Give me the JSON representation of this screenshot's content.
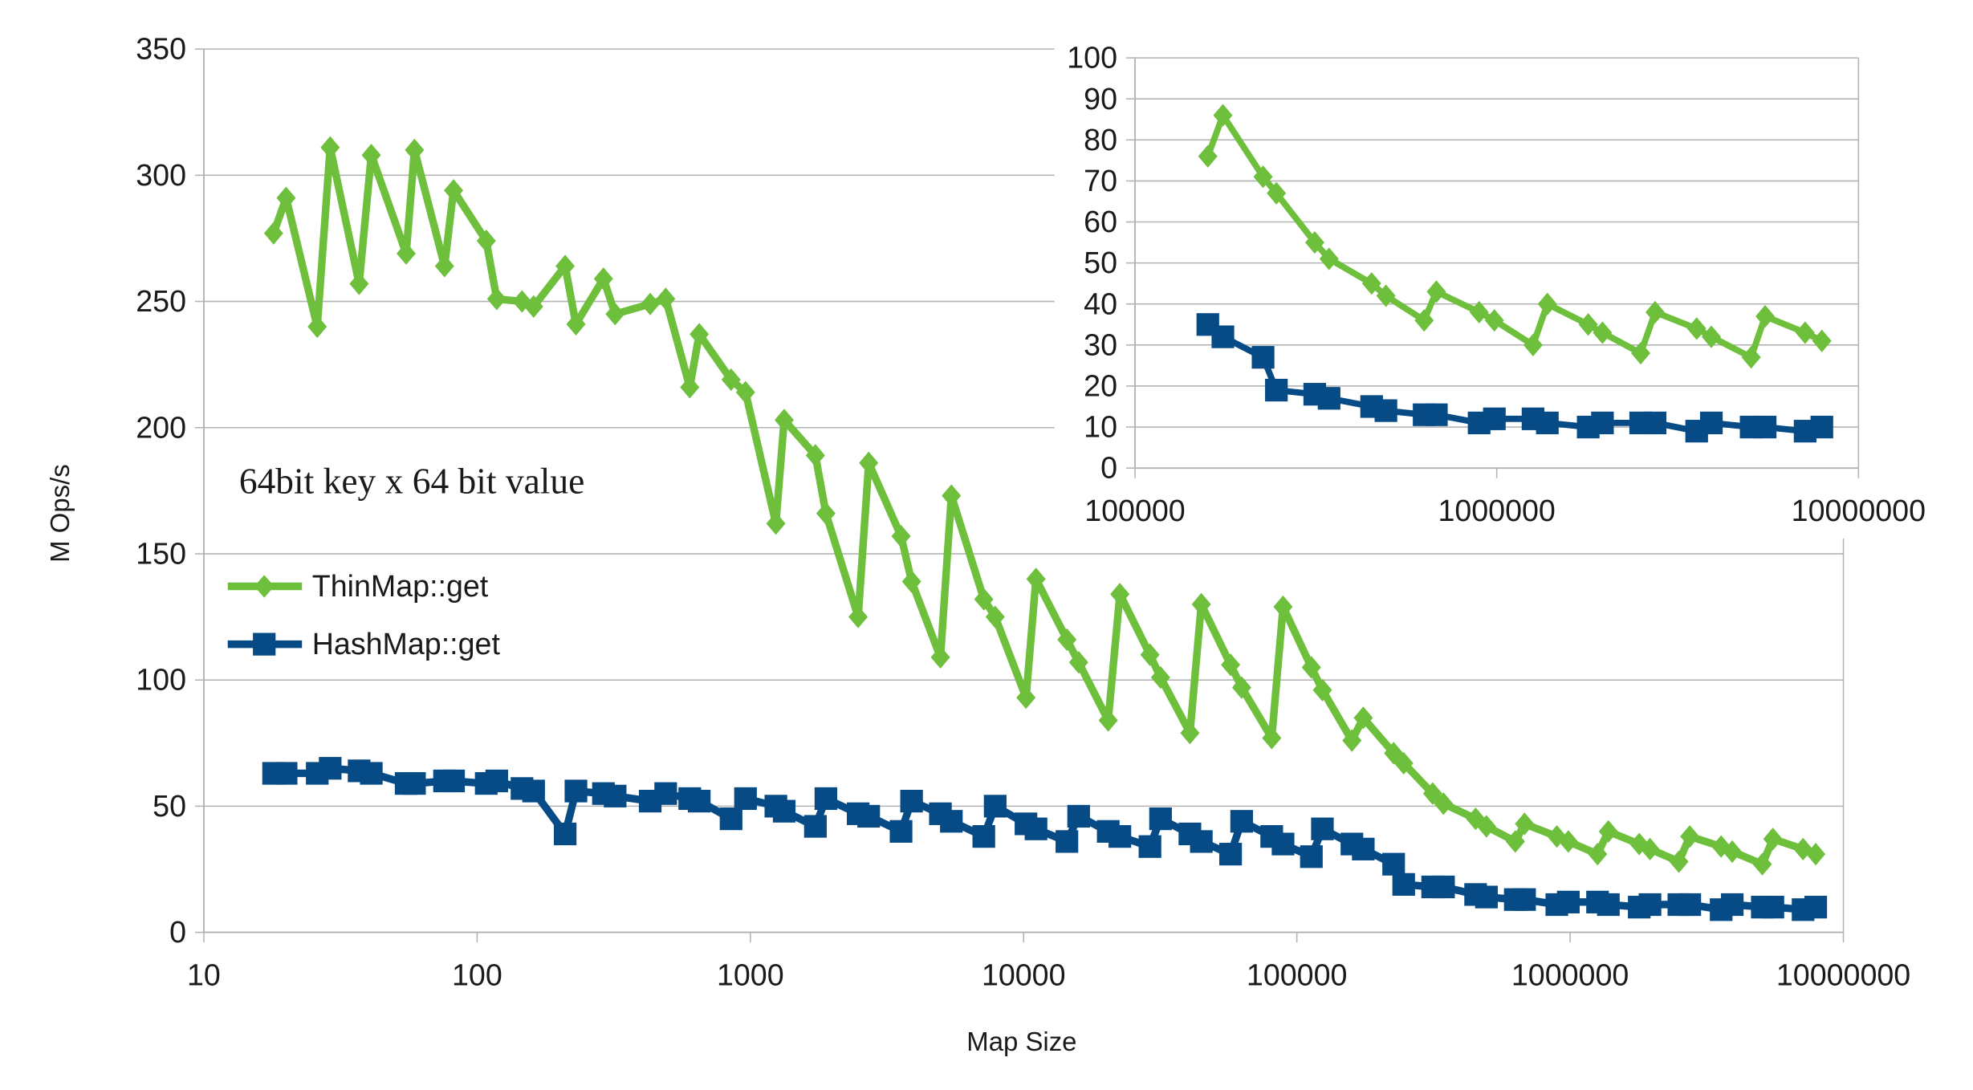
{
  "chart_data": [
    {
      "type": "line",
      "xlabel": "Map Size",
      "ylabel": "M Ops/s",
      "x_scale": "log",
      "xlim": [
        10,
        10000000
      ],
      "ylim": [
        0,
        350
      ],
      "x_ticks": [
        "10",
        "100",
        "1000",
        "10000",
        "100000",
        "1000000",
        "10000000"
      ],
      "y_ticks": [
        "0",
        "50",
        "100",
        "150",
        "200",
        "250",
        "300",
        "350"
      ],
      "grid": "horizontal",
      "legend": "left",
      "annotation": "64bit key x 64 bit value",
      "series": [
        {
          "name": "ThinMap::get",
          "color": "#6dbf3c",
          "marker": "diamond",
          "points": [
            [
              18,
              277
            ],
            [
              20,
              291
            ],
            [
              26,
              240
            ],
            [
              29,
              311
            ],
            [
              37,
              257
            ],
            [
              41,
              308
            ],
            [
              55,
              269
            ],
            [
              59,
              310
            ],
            [
              76,
              264
            ],
            [
              82,
              294
            ],
            [
              108,
              274
            ],
            [
              118,
              251
            ],
            [
              146,
              250
            ],
            [
              161,
              248
            ],
            [
              210,
              264
            ],
            [
              230,
              241
            ],
            [
              290,
              259
            ],
            [
              320,
              245
            ],
            [
              430,
              249
            ],
            [
              490,
              251
            ],
            [
              600,
              216
            ],
            [
              650,
              237
            ],
            [
              850,
              219
            ],
            [
              960,
              214
            ],
            [
              1240,
              162
            ],
            [
              1330,
              203
            ],
            [
              1730,
              189
            ],
            [
              1890,
              166
            ],
            [
              2480,
              125
            ],
            [
              2710,
              186
            ],
            [
              3560,
              157
            ],
            [
              3890,
              139
            ],
            [
              4960,
              109
            ],
            [
              5440,
              173
            ],
            [
              7150,
              132
            ],
            [
              7870,
              125
            ],
            [
              10200,
              93
            ],
            [
              11100,
              140
            ],
            [
              14400,
              116
            ],
            [
              15900,
              107
            ],
            [
              20400,
              84
            ],
            [
              22500,
              134
            ],
            [
              29000,
              110
            ],
            [
              31700,
              101
            ],
            [
              40600,
              79
            ],
            [
              44700,
              130
            ],
            [
              57200,
              106
            ],
            [
              62800,
              97
            ],
            [
              80900,
              77
            ],
            [
              89000,
              129
            ],
            [
              113000,
              105
            ],
            [
              124000,
              96
            ],
            [
              159000,
              76
            ],
            [
              175000,
              85
            ],
            [
              226000,
              71
            ],
            [
              246000,
              67
            ],
            [
              314000,
              55
            ],
            [
              344000,
              51
            ],
            [
              451000,
              45
            ],
            [
              494000,
              42
            ],
            [
              630000,
              36
            ],
            [
              681000,
              43
            ],
            [
              894000,
              38
            ],
            [
              985000,
              36
            ],
            [
              1260000,
              31
            ],
            [
              1380000,
              40
            ],
            [
              1790000,
              35
            ],
            [
              1960000,
              33
            ],
            [
              2500000,
              28
            ],
            [
              2740000,
              38
            ],
            [
              3570000,
              34
            ],
            [
              3920000,
              32
            ],
            [
              5050000,
              27
            ],
            [
              5520000,
              37
            ],
            [
              7120000,
              33
            ],
            [
              7920000,
              31
            ]
          ]
        },
        {
          "name": "HashMap::get",
          "color": "#064b86",
          "marker": "square",
          "points": [
            [
              18,
              63
            ],
            [
              20,
              63
            ],
            [
              26,
              63
            ],
            [
              29,
              65
            ],
            [
              37,
              64
            ],
            [
              41,
              63
            ],
            [
              55,
              59
            ],
            [
              59,
              59
            ],
            [
              76,
              60
            ],
            [
              82,
              60
            ],
            [
              108,
              59
            ],
            [
              118,
              60
            ],
            [
              146,
              57
            ],
            [
              161,
              56
            ],
            [
              210,
              39
            ],
            [
              230,
              56
            ],
            [
              290,
              55
            ],
            [
              320,
              54
            ],
            [
              430,
              52
            ],
            [
              490,
              55
            ],
            [
              600,
              53
            ],
            [
              650,
              52
            ],
            [
              850,
              45
            ],
            [
              960,
              53
            ],
            [
              1240,
              50
            ],
            [
              1330,
              48
            ],
            [
              1730,
              42
            ],
            [
              1890,
              53
            ],
            [
              2480,
              47
            ],
            [
              2710,
              46
            ],
            [
              3560,
              40
            ],
            [
              3890,
              52
            ],
            [
              4960,
              47
            ],
            [
              5440,
              44
            ],
            [
              7150,
              38
            ],
            [
              7870,
              50
            ],
            [
              10200,
              43
            ],
            [
              11100,
              41
            ],
            [
              14400,
              36
            ],
            [
              15900,
              46
            ],
            [
              20400,
              40
            ],
            [
              22500,
              38
            ],
            [
              29000,
              34
            ],
            [
              31700,
              45
            ],
            [
              40600,
              39
            ],
            [
              44700,
              36
            ],
            [
              57200,
              31
            ],
            [
              62800,
              44
            ],
            [
              80900,
              38
            ],
            [
              89000,
              35
            ],
            [
              113000,
              30
            ],
            [
              124000,
              41
            ],
            [
              159000,
              35
            ],
            [
              175000,
              33
            ],
            [
              226000,
              27
            ],
            [
              246000,
              19
            ],
            [
              314000,
              18
            ],
            [
              344000,
              18
            ],
            [
              451000,
              15
            ],
            [
              494000,
              14
            ],
            [
              630000,
              13
            ],
            [
              681000,
              13
            ],
            [
              894000,
              11
            ],
            [
              985000,
              12
            ],
            [
              1260000,
              12
            ],
            [
              1380000,
              11
            ],
            [
              1790000,
              10
            ],
            [
              1960000,
              11
            ],
            [
              2500000,
              11
            ],
            [
              2740000,
              11
            ],
            [
              3570000,
              9
            ],
            [
              3920000,
              11
            ],
            [
              5050000,
              10
            ],
            [
              5520000,
              10
            ],
            [
              7120000,
              9
            ],
            [
              7920000,
              10
            ]
          ]
        }
      ]
    },
    {
      "type": "line",
      "x_scale": "log",
      "xlim": [
        100000,
        10000000
      ],
      "ylim": [
        0,
        100
      ],
      "x_ticks": [
        "100000",
        "1000000",
        "10000000"
      ],
      "y_ticks": [
        "0",
        "10",
        "20",
        "30",
        "40",
        "50",
        "60",
        "70",
        "80",
        "90",
        "100"
      ],
      "grid": "horizontal",
      "series": [
        {
          "color": "#6dbf3c",
          "marker": "diamond",
          "points": [
            [
              159000,
              76
            ],
            [
              175000,
              86
            ],
            [
              226000,
              71
            ],
            [
              246000,
              67
            ],
            [
              314000,
              55
            ],
            [
              344000,
              51
            ],
            [
              451000,
              45
            ],
            [
              494000,
              42
            ],
            [
              630000,
              36
            ],
            [
              681000,
              43
            ],
            [
              894000,
              38
            ],
            [
              985000,
              36
            ],
            [
              1260000,
              30
            ],
            [
              1380000,
              40
            ],
            [
              1790000,
              35
            ],
            [
              1960000,
              33
            ],
            [
              2500000,
              28
            ],
            [
              2740000,
              38
            ],
            [
              3570000,
              34
            ],
            [
              3920000,
              32
            ],
            [
              5050000,
              27
            ],
            [
              5520000,
              37
            ],
            [
              7120000,
              33
            ],
            [
              7920000,
              31
            ]
          ]
        },
        {
          "color": "#064b86",
          "marker": "square",
          "points": [
            [
              159000,
              35
            ],
            [
              175000,
              32
            ],
            [
              226000,
              27
            ],
            [
              246000,
              19
            ],
            [
              314000,
              18
            ],
            [
              344000,
              17
            ],
            [
              451000,
              15
            ],
            [
              494000,
              14
            ],
            [
              630000,
              13
            ],
            [
              681000,
              13
            ],
            [
              894000,
              11
            ],
            [
              985000,
              12
            ],
            [
              1260000,
              12
            ],
            [
              1380000,
              11
            ],
            [
              1790000,
              10
            ],
            [
              1960000,
              11
            ],
            [
              2500000,
              11
            ],
            [
              2740000,
              11
            ],
            [
              3570000,
              9
            ],
            [
              3920000,
              11
            ],
            [
              5050000,
              10
            ],
            [
              5520000,
              10
            ],
            [
              7120000,
              9
            ],
            [
              7920000,
              10
            ]
          ]
        }
      ]
    }
  ]
}
